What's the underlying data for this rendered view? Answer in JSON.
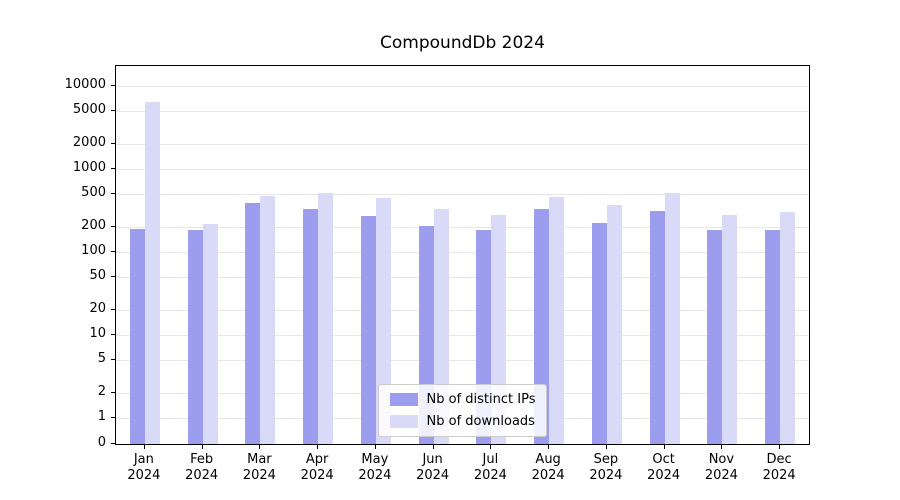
{
  "chart_data": {
    "type": "bar",
    "title": "CompoundDb 2024",
    "xlabel": "",
    "ylabel": "",
    "yscale": "symlog",
    "ylim": [
      0,
      13000
    ],
    "grid": "horizontal",
    "legend_position": "lower center inside plot",
    "yticks": [
      0,
      1,
      2,
      5,
      10,
      20,
      50,
      100,
      200,
      500,
      1000,
      2000,
      5000,
      10000
    ],
    "categories": [
      "Jan 2024",
      "Feb 2024",
      "Mar 2024",
      "Apr 2024",
      "May 2024",
      "Jun 2024",
      "Jul 2024",
      "Aug 2024",
      "Sep 2024",
      "Oct 2024",
      "Nov 2024",
      "Dec 2024"
    ],
    "series": [
      {
        "name": "Nb of distinct IPs",
        "key": "distinct-ips",
        "color": "#9d9df0",
        "values": [
          190,
          185,
          390,
          330,
          270,
          205,
          185,
          330,
          225,
          310,
          185,
          185
        ]
      },
      {
        "name": "Nb of downloads",
        "key": "downloads",
        "color": "#d9d9f8",
        "values": [
          6500,
          215,
          470,
          520,
          450,
          330,
          280,
          460,
          370,
          520,
          280,
          300
        ]
      }
    ]
  }
}
